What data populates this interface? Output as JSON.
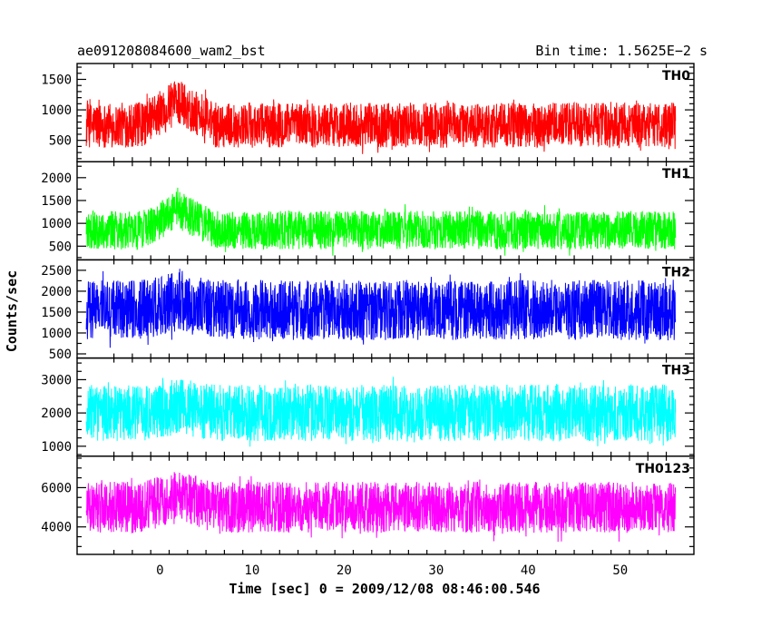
{
  "header": {
    "title": "ae091208084600_wam2_bst",
    "bin_time": "Bin time: 1.5625E−2 s"
  },
  "chart_data": {
    "type": "line",
    "xlabel": "Time [sec] 0 = 2009/12/08 08:46:00.546",
    "ylabel": "Counts/sec",
    "xlim": [
      -9,
      58
    ],
    "xticks": [
      0,
      10,
      20,
      30,
      40,
      50
    ],
    "x_range": [
      -8,
      56
    ],
    "grid": false,
    "panels": [
      {
        "name": "TH0",
        "color": "#ff0000",
        "ylim": [
          150,
          1760
        ],
        "yticks": [
          500,
          1000,
          1500
        ],
        "mean": 750,
        "spread": 370,
        "burst_peak": 1150
      },
      {
        "name": "TH1",
        "color": "#00ff00",
        "ylim": [
          200,
          2350
        ],
        "yticks": [
          500,
          1000,
          1500,
          2000
        ],
        "mean": 850,
        "spread": 420,
        "burst_peak": 1300
      },
      {
        "name": "TH2",
        "color": "#0000ff",
        "ylim": [
          400,
          2750
        ],
        "yticks": [
          500,
          1000,
          1500,
          2000,
          2500
        ],
        "mean": 1550,
        "spread": 720,
        "burst_peak": 1750
      },
      {
        "name": "TH3",
        "color": "#00ffff",
        "ylim": [
          700,
          3650
        ],
        "yticks": [
          1000,
          2000,
          3000
        ],
        "mean": 2000,
        "spread": 850,
        "burst_peak": 2200
      },
      {
        "name": "TH0123",
        "color": "#ff00ff",
        "ylim": [
          2600,
          7600
        ],
        "yticks": [
          4000,
          6000
        ],
        "mean": 5000,
        "spread": 1300,
        "burst_peak": 5600
      }
    ]
  }
}
